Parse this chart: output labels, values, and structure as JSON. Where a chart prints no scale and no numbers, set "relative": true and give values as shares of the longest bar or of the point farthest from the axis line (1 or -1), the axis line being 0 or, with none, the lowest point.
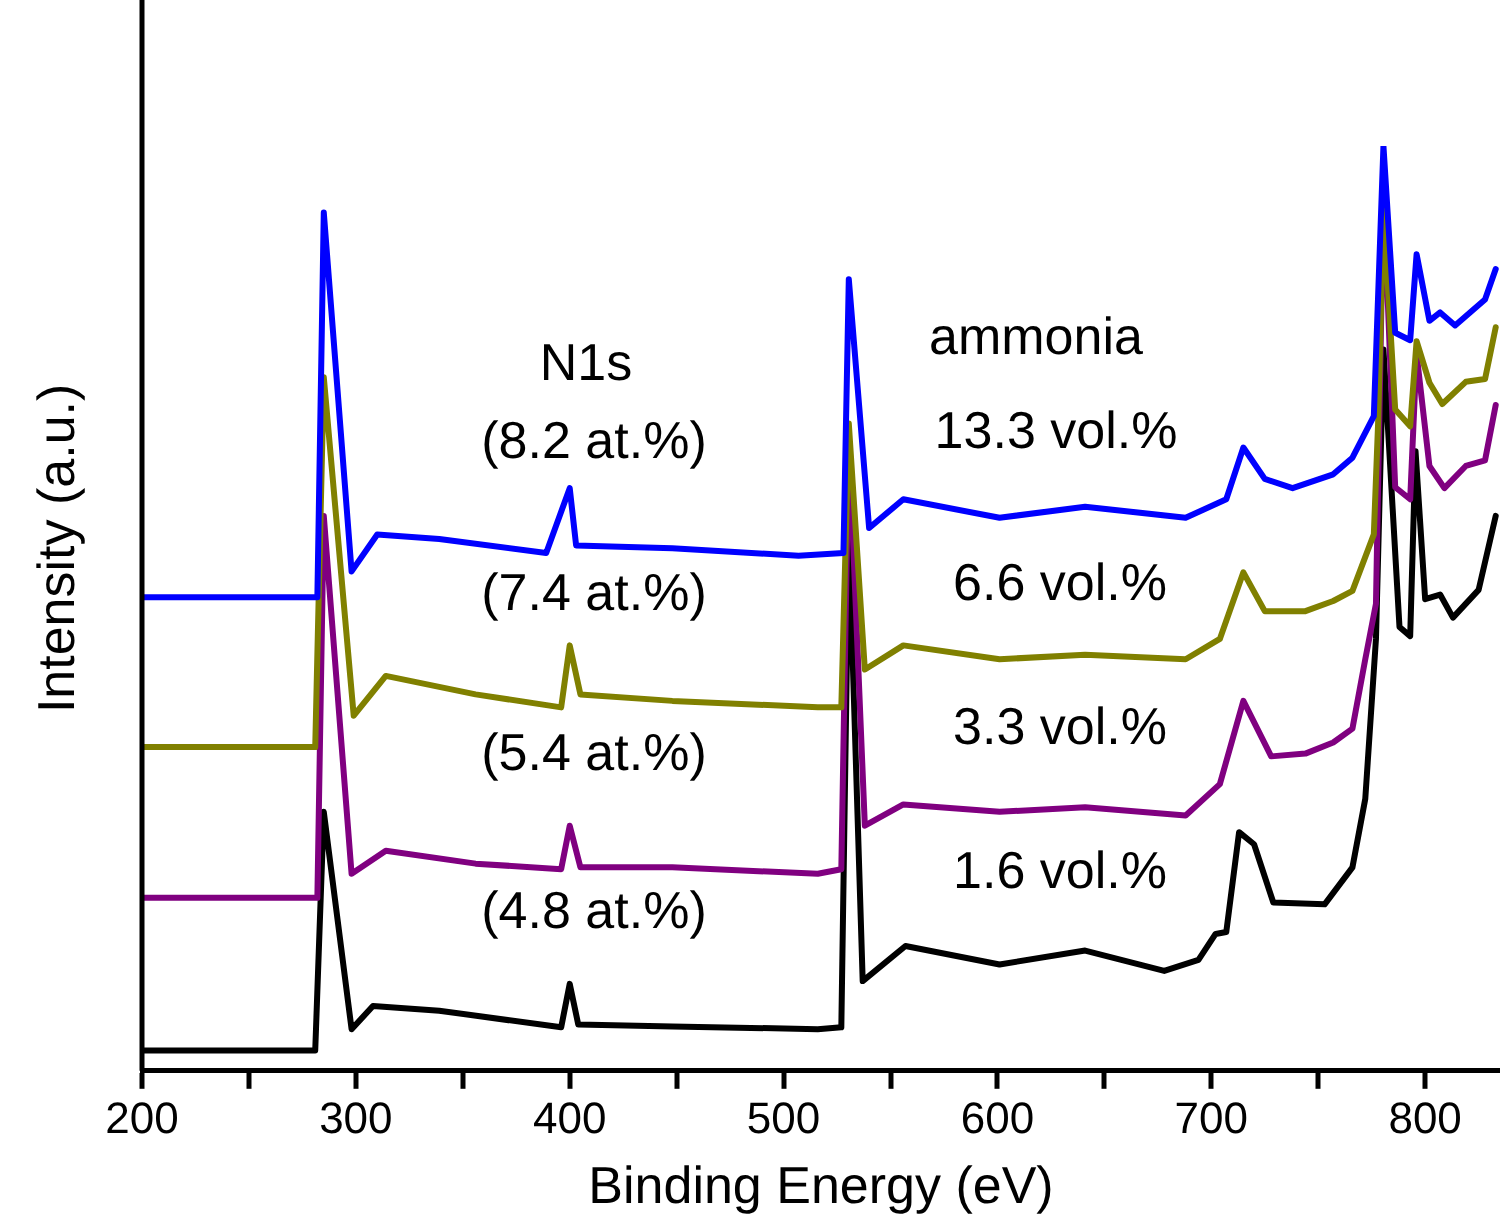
{
  "chart_data": {
    "type": "line",
    "xlabel": "Binding Energy (eV)",
    "ylabel": "Intensity (a.u.)",
    "relative": true,
    "xlim": [
      200,
      835
    ],
    "xticks": [
      200,
      {
        "value": 250,
        "label": null
      },
      300,
      {
        "value": 350,
        "label": null
      },
      400,
      {
        "value": 450,
        "label": null
      },
      500,
      {
        "value": 550,
        "label": null
      },
      600,
      {
        "value": 650,
        "label": null
      },
      700,
      {
        "value": 750,
        "label": null
      },
      800
    ],
    "grid": false,
    "legend": false,
    "marker": "none",
    "line_style": "solid",
    "series": [
      {
        "color": "#0000ff",
        "x": [
          200,
          282,
          285,
          298,
          310,
          339,
          389,
          400,
          403,
          448,
          507,
          528,
          530.5,
          540,
          556,
          601,
          641,
          688,
          707,
          715,
          725,
          738,
          757,
          766,
          776,
          780.5,
          786,
          793,
          796,
          802,
          807,
          814,
          828,
          833
        ],
        "values": [
          0.512,
          0.512,
          0.928,
          0.54,
          0.58,
          0.575,
          0.56,
          0.63,
          0.568,
          0.565,
          0.557,
          0.56,
          0.856,
          0.587,
          0.618,
          0.598,
          0.61,
          0.598,
          0.618,
          0.674,
          0.64,
          0.63,
          0.645,
          0.663,
          0.708,
          1.0,
          0.798,
          0.79,
          0.883,
          0.811,
          0.82,
          0.806,
          0.834,
          0.867
        ]
      },
      {
        "color": "#808000",
        "x": [
          200,
          281,
          285,
          299,
          314,
          356,
          396,
          400,
          405,
          448,
          516,
          527,
          530.5,
          538,
          556,
          601,
          641,
          688,
          704,
          715,
          725,
          744,
          757,
          766,
          776,
          778,
          780.5,
          786,
          793,
          796,
          802,
          808,
          819,
          828,
          833
        ],
        "values": [
          0.35,
          0.35,
          0.75,
          0.384,
          0.427,
          0.407,
          0.393,
          0.46,
          0.407,
          0.4,
          0.393,
          0.393,
          0.7,
          0.434,
          0.46,
          0.445,
          0.45,
          0.445,
          0.467,
          0.539,
          0.497,
          0.497,
          0.508,
          0.519,
          0.58,
          0.7,
          0.93,
          0.715,
          0.697,
          0.789,
          0.744,
          0.721,
          0.745,
          0.748,
          0.804
        ]
      },
      {
        "color": "#800080",
        "x": [
          200,
          282,
          285,
          298,
          314,
          356,
          396,
          400,
          405,
          448,
          516,
          527,
          530.5,
          538,
          556,
          601,
          641,
          688,
          704,
          715,
          728,
          744,
          757,
          766,
          772,
          777,
          780.5,
          786,
          793,
          796,
          802,
          809,
          819,
          828,
          833
        ],
        "values": [
          0.187,
          0.187,
          0.6,
          0.213,
          0.238,
          0.224,
          0.218,
          0.265,
          0.22,
          0.22,
          0.213,
          0.218,
          0.685,
          0.265,
          0.288,
          0.28,
          0.285,
          0.276,
          0.31,
          0.4,
          0.34,
          0.343,
          0.355,
          0.37,
          0.445,
          0.505,
          0.95,
          0.631,
          0.618,
          0.775,
          0.654,
          0.63,
          0.654,
          0.66,
          0.72
        ]
      },
      {
        "color": "#000000",
        "x": [
          200,
          281,
          285,
          298,
          308,
          339,
          396,
          400,
          404,
          448,
          516,
          527,
          530.5,
          537,
          557,
          601,
          641,
          678,
          694,
          702,
          707,
          713,
          720,
          729,
          753,
          766,
          772,
          777,
          780.5,
          788,
          793,
          795.5,
          800,
          807,
          813,
          825,
          833
        ],
        "values": [
          0.022,
          0.022,
          0.28,
          0.045,
          0.07,
          0.065,
          0.047,
          0.094,
          0.05,
          0.048,
          0.045,
          0.047,
          0.58,
          0.097,
          0.135,
          0.115,
          0.13,
          0.108,
          0.12,
          0.148,
          0.15,
          0.258,
          0.245,
          0.182,
          0.18,
          0.22,
          0.294,
          0.467,
          0.78,
          0.48,
          0.47,
          0.67,
          0.51,
          0.515,
          0.49,
          0.52,
          0.6
        ]
      }
    ],
    "annotations": [
      "N1s",
      "(8.2 at.%)",
      "(7.4 at.%)",
      "(5.4 at.%)",
      "(4.8 at.%)",
      "ammonia",
      "13.3 vol.%",
      "6.6 vol.%",
      "3.3 vol.%",
      "1.6 vol.%"
    ]
  }
}
